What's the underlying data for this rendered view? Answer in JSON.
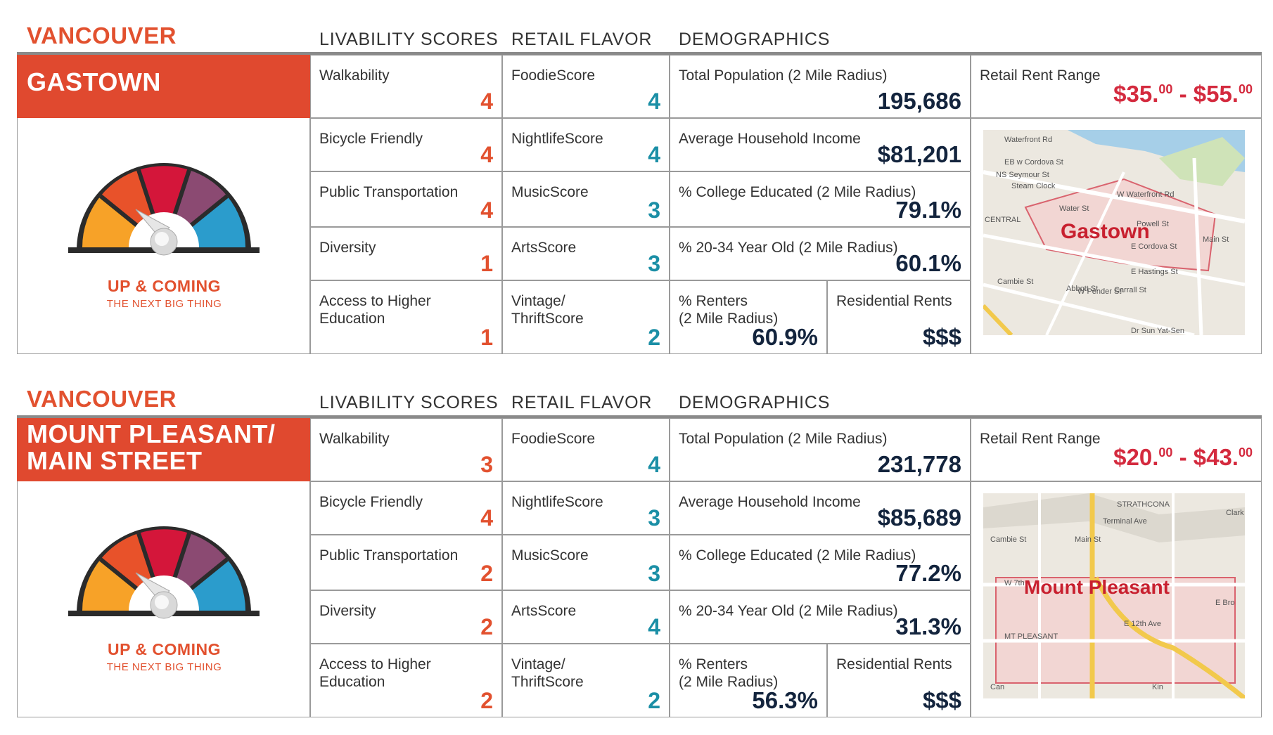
{
  "section_headers": {
    "livability": "LIVABILITY SCORES",
    "retail": "RETAIL FLAVOR",
    "demographics": "DEMOGRAPHICS"
  },
  "gauge": {
    "title": "UP & COMING",
    "subtitle": "THE NEXT BIG THING"
  },
  "colors": {
    "accent": "#e0492f",
    "teal": "#1b8fa6",
    "navy": "#13243d",
    "red": "#d42a3e"
  },
  "panels": [
    {
      "city": "VANCOUVER",
      "name_line1": "GASTOWN",
      "name_line2": "",
      "livability": [
        {
          "label": "Walkability",
          "value": "4"
        },
        {
          "label": "Bicycle Friendly",
          "value": "4"
        },
        {
          "label": "Public Transportation",
          "value": "4"
        },
        {
          "label": "Diversity",
          "value": "1"
        },
        {
          "label_line1": "Access to Higher",
          "label_line2": "Education",
          "value": "1"
        }
      ],
      "retail": [
        {
          "label": "FoodieScore",
          "value": "4"
        },
        {
          "label": "NightlifeScore",
          "value": "4"
        },
        {
          "label": "MusicScore",
          "value": "3"
        },
        {
          "label": "ArtsScore",
          "value": "3"
        },
        {
          "label_line1": "Vintage/",
          "label_line2": "ThriftScore",
          "value": "2"
        }
      ],
      "demographics": {
        "population_label": "Total Population (2 Mile Radius)",
        "population": "195,686",
        "income_label": "Average Household Income",
        "income": "$81,201",
        "college_label": "% College Educated (2 Mile Radius)",
        "college": "79.1%",
        "age_label": "% 20-34 Year Old (2 Mile Radius)",
        "age": "60.1%",
        "renters_label_line1": "% Renters",
        "renters_label_line2": "(2 Mile Radius)",
        "renters": "60.9%",
        "res_rents_label": "Residential Rents",
        "res_rents": "$$$"
      },
      "rent": {
        "label": "Retail Rent Range",
        "low": "$35.",
        "low_cents": "00",
        "sep": " - ",
        "high": "$55.",
        "high_cents": "00"
      },
      "map": {
        "label": "Gastown",
        "streets": [
          "Waterfront Rd",
          "EB w Cordova St",
          "NS Seymour St",
          "Steam Clock",
          "W Waterfront Rd",
          "Water St",
          "Powell St",
          "CENTRAL",
          "E Cordova St",
          "E Hastings St",
          "Cambie St",
          "Abbott St",
          "W Pender St",
          "Carrall St",
          "Main St",
          "Dr Sun Yat-Sen"
        ],
        "gauge_needle_pct": 38
      }
    },
    {
      "city": "VANCOUVER",
      "name_line1": "MOUNT PLEASANT/",
      "name_line2": "MAIN STREET",
      "livability": [
        {
          "label": "Walkability",
          "value": "3"
        },
        {
          "label": "Bicycle Friendly",
          "value": "4"
        },
        {
          "label": "Public Transportation",
          "value": "2"
        },
        {
          "label": "Diversity",
          "value": "2"
        },
        {
          "label_line1": "Access to Higher",
          "label_line2": "Education",
          "value": "2"
        }
      ],
      "retail": [
        {
          "label": "FoodieScore",
          "value": "4"
        },
        {
          "label": "NightlifeScore",
          "value": "3"
        },
        {
          "label": "MusicScore",
          "value": "3"
        },
        {
          "label": "ArtsScore",
          "value": "4"
        },
        {
          "label_line1": "Vintage/",
          "label_line2": "ThriftScore",
          "value": "2"
        }
      ],
      "demographics": {
        "population_label": "Total Population (2 Mile Radius)",
        "population": "231,778",
        "income_label": "Average Household Income",
        "income": "$85,689",
        "college_label": "% College Educated (2 Mile Radius)",
        "college": "77.2%",
        "age_label": "% 20-34 Year Old (2 Mile Radius)",
        "age": "31.3%",
        "renters_label_line1": "% Renters",
        "renters_label_line2": "(2 Mile Radius)",
        "renters": "56.3%",
        "res_rents_label": "Residential Rents",
        "res_rents": "$$$"
      },
      "rent": {
        "label": "Retail Rent Range",
        "low": "$20.",
        "low_cents": "00",
        "sep": " - ",
        "high": "$43.",
        "high_cents": "00"
      },
      "map": {
        "label": "Mount Pleasant",
        "streets": [
          "STRATHCONA",
          "Terminal Ave",
          "Clark Dr",
          "Cambie St",
          "Main St",
          "W 7th",
          "E Bro",
          "E 12th Ave",
          "MT PLEASANT",
          "Kin",
          "Can"
        ],
        "gauge_needle_pct": 38
      }
    }
  ]
}
